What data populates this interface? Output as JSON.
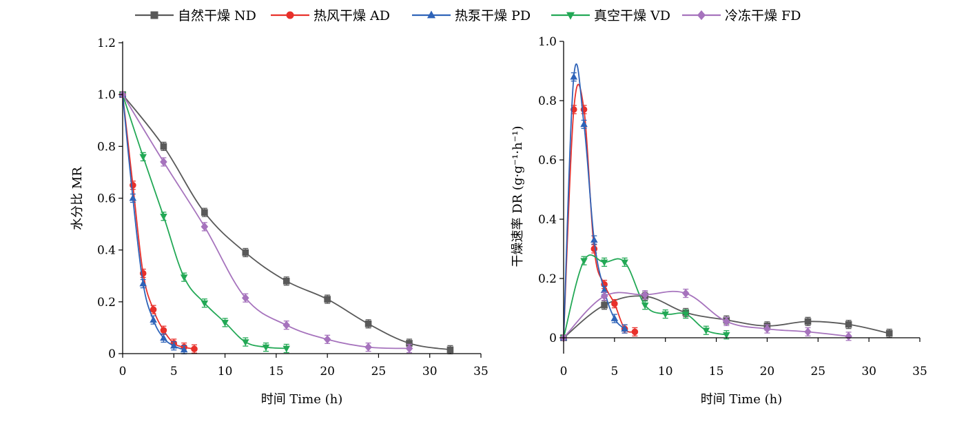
{
  "legend": [
    {
      "name": "自然干燥 ND",
      "color": "#595959",
      "marker": "square"
    },
    {
      "name": "热风干燥 AD",
      "color": "#e8302a",
      "marker": "circle"
    },
    {
      "name": "热泵干燥 PD",
      "color": "#2e63b8",
      "marker": "triangle-up"
    },
    {
      "name": "真空干燥 VD",
      "color": "#22a855",
      "marker": "triangle-down"
    },
    {
      "name": "冷冻干燥 FD",
      "color": "#a673bd",
      "marker": "diamond"
    }
  ],
  "chart_data": [
    {
      "type": "line",
      "xlabel": "时间 Time (h)",
      "ylabel": "水分比 MR",
      "xlim": [
        0,
        35
      ],
      "ylim": [
        0,
        1.2
      ],
      "xticks": [
        "0",
        "5",
        "10",
        "15",
        "20",
        "25",
        "30",
        "35"
      ],
      "yticks": [
        "0",
        "0.2",
        "0.4",
        "0.6",
        "0.8",
        "1.0",
        "1.2"
      ],
      "grid": false,
      "series": [
        {
          "name": "自然干燥 ND",
          "x": [
            0,
            4,
            8,
            12,
            16,
            20,
            24,
            28,
            32
          ],
          "y": [
            1.0,
            0.8,
            0.545,
            0.39,
            0.28,
            0.21,
            0.115,
            0.04,
            0.015
          ]
        },
        {
          "name": "热风干燥 AD",
          "x": [
            0,
            1,
            2,
            3,
            4,
            5,
            6,
            7
          ],
          "y": [
            1.0,
            0.65,
            0.31,
            0.17,
            0.09,
            0.04,
            0.025,
            0.018
          ]
        },
        {
          "name": "热泵干燥 PD",
          "x": [
            0,
            1,
            2,
            3,
            4,
            5,
            6
          ],
          "y": [
            1.0,
            0.6,
            0.27,
            0.13,
            0.06,
            0.03,
            0.015
          ]
        },
        {
          "name": "真空干燥 VD",
          "x": [
            0,
            2,
            4,
            6,
            8,
            10,
            12,
            14,
            16
          ],
          "y": [
            1.0,
            0.76,
            0.53,
            0.295,
            0.195,
            0.12,
            0.045,
            0.025,
            0.02
          ]
        },
        {
          "name": "冷冻干燥 FD",
          "x": [
            0,
            4,
            8,
            12,
            16,
            20,
            24,
            28
          ],
          "y": [
            1.0,
            0.74,
            0.49,
            0.215,
            0.11,
            0.055,
            0.025,
            0.02
          ]
        }
      ]
    },
    {
      "type": "line",
      "xlabel": "时间 Time (h)",
      "ylabel": "干燥速率 DR (g·g⁻¹·h⁻¹)",
      "xlim": [
        0,
        35
      ],
      "ylim": [
        0,
        1.0
      ],
      "xticks": [
        "0",
        "5",
        "10",
        "15",
        "20",
        "25",
        "30",
        "35"
      ],
      "yticks": [
        "0",
        "0.2",
        "0.4",
        "0.6",
        "0.8",
        "1.0"
      ],
      "grid": false,
      "series": [
        {
          "name": "自然干燥 ND",
          "x": [
            0,
            4,
            8,
            12,
            16,
            20,
            24,
            28,
            32
          ],
          "y": [
            0,
            0.11,
            0.14,
            0.085,
            0.06,
            0.04,
            0.055,
            0.045,
            0.015
          ]
        },
        {
          "name": "热风干燥 AD",
          "x": [
            0,
            1,
            2,
            3,
            4,
            5,
            6,
            7
          ],
          "y": [
            0,
            0.77,
            0.77,
            0.3,
            0.18,
            0.115,
            0.03,
            0.02
          ]
        },
        {
          "name": "热泵干燥 PD",
          "x": [
            0,
            1,
            2,
            3,
            4,
            5,
            6
          ],
          "y": [
            0,
            0.88,
            0.72,
            0.33,
            0.16,
            0.065,
            0.03
          ]
        },
        {
          "name": "真空干燥 VD",
          "x": [
            0,
            2,
            4,
            6,
            8,
            10,
            12,
            14,
            16
          ],
          "y": [
            0,
            0.26,
            0.255,
            0.255,
            0.11,
            0.08,
            0.08,
            0.025,
            0.01
          ]
        },
        {
          "name": "冷冻干燥 FD",
          "x": [
            0,
            4,
            8,
            12,
            16,
            20,
            24,
            28
          ],
          "y": [
            0,
            0.14,
            0.145,
            0.15,
            0.055,
            0.03,
            0.02,
            0.005
          ]
        }
      ]
    }
  ]
}
